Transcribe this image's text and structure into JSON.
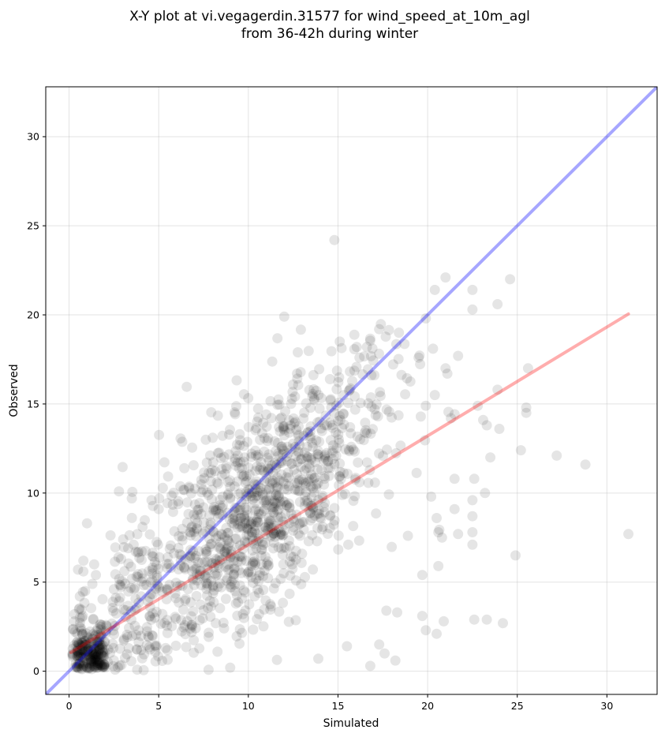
{
  "chart_data": {
    "type": "scatter",
    "title_line1": "X-Y plot at vi.vegagerdin.31577 for wind_speed_at_10m_agl",
    "title_line2": "from 36-42h during winter",
    "xlabel": "Simulated",
    "ylabel": "Observed",
    "xlim": [
      -1.3,
      32.8
    ],
    "ylim": [
      -1.3,
      32.8
    ],
    "xticks": [
      0,
      5,
      10,
      15,
      20,
      25,
      30
    ],
    "yticks": [
      0,
      5,
      10,
      15,
      20,
      25,
      30
    ],
    "grid": true,
    "point_color": "#000000",
    "point_alpha": 0.1,
    "identity_line": {
      "color": "#0000ff",
      "from": [
        -1.3,
        -1.3
      ],
      "to": [
        32.8,
        32.8
      ]
    },
    "regression_line": {
      "color": "#ff0000",
      "from": [
        0.1,
        1.05
      ],
      "to": [
        31.2,
        20.05
      ]
    },
    "cloud_seed": 31577,
    "cloud_n": 1500,
    "points": [
      [
        14.8,
        24.2
      ],
      [
        12.0,
        19.9
      ],
      [
        21.0,
        22.1
      ],
      [
        24.6,
        22.0
      ],
      [
        20.4,
        21.4
      ],
      [
        22.5,
        21.4
      ],
      [
        22.5,
        20.3
      ],
      [
        23.9,
        20.6
      ],
      [
        19.9,
        19.8
      ],
      [
        18.4,
        19.0
      ],
      [
        17.3,
        19.2
      ],
      [
        15.1,
        18.5
      ],
      [
        16.2,
        17.6
      ],
      [
        21.7,
        17.7
      ],
      [
        20.3,
        18.1
      ],
      [
        19.5,
        17.6
      ],
      [
        21.0,
        17.0
      ],
      [
        25.6,
        17.0
      ],
      [
        21.1,
        16.7
      ],
      [
        23.9,
        15.8
      ],
      [
        20.4,
        15.5
      ],
      [
        19.9,
        14.9
      ],
      [
        22.8,
        14.9
      ],
      [
        25.5,
        14.8
      ],
      [
        25.5,
        14.5
      ],
      [
        21.3,
        14.2
      ],
      [
        23.1,
        14.1
      ],
      [
        23.3,
        13.8
      ],
      [
        24.0,
        13.6
      ],
      [
        25.2,
        12.4
      ],
      [
        23.5,
        12.0
      ],
      [
        27.2,
        12.1
      ],
      [
        28.8,
        11.6
      ],
      [
        31.2,
        7.7
      ],
      [
        21.5,
        10.8
      ],
      [
        22.6,
        10.8
      ],
      [
        23.2,
        10.0
      ],
      [
        21.5,
        9.1
      ],
      [
        22.5,
        9.6
      ],
      [
        22.5,
        8.7
      ],
      [
        22.5,
        7.8
      ],
      [
        22.5,
        7.1
      ],
      [
        20.2,
        9.8
      ],
      [
        20.5,
        8.6
      ],
      [
        20.6,
        7.8
      ],
      [
        20.8,
        7.5
      ],
      [
        21.7,
        7.7
      ],
      [
        20.6,
        5.9
      ],
      [
        19.7,
        5.4
      ],
      [
        24.9,
        6.5
      ],
      [
        18.9,
        7.6
      ],
      [
        22.6,
        2.9
      ],
      [
        23.3,
        2.9
      ],
      [
        24.2,
        2.7
      ],
      [
        20.9,
        2.8
      ],
      [
        20.5,
        2.1
      ],
      [
        19.7,
        3.1
      ],
      [
        19.9,
        2.3
      ],
      [
        18.3,
        3.3
      ],
      [
        17.7,
        3.4
      ],
      [
        18.2,
        0.6
      ],
      [
        17.6,
        1.0
      ],
      [
        17.3,
        1.5
      ],
      [
        16.8,
        0.3
      ],
      [
        15.5,
        1.4
      ],
      [
        13.9,
        0.7
      ],
      [
        1.0,
        8.3
      ],
      [
        3.5,
        9.7
      ],
      [
        4.6,
        9.6
      ],
      [
        5.0,
        9.1
      ],
      [
        3.3,
        6.9
      ],
      [
        3.6,
        7.1
      ],
      [
        2.9,
        6.3
      ],
      [
        0.8,
        6.2
      ],
      [
        1.4,
        6.0
      ],
      [
        0.5,
        5.7
      ],
      [
        0.8,
        5.6
      ],
      [
        1.5,
        5.4
      ],
      [
        0.9,
        4.5
      ],
      [
        0.6,
        4.2
      ],
      [
        0.3,
        3.2
      ],
      [
        0.6,
        3.0
      ],
      [
        1.3,
        4.9
      ],
      [
        2.5,
        4.6
      ]
    ]
  }
}
